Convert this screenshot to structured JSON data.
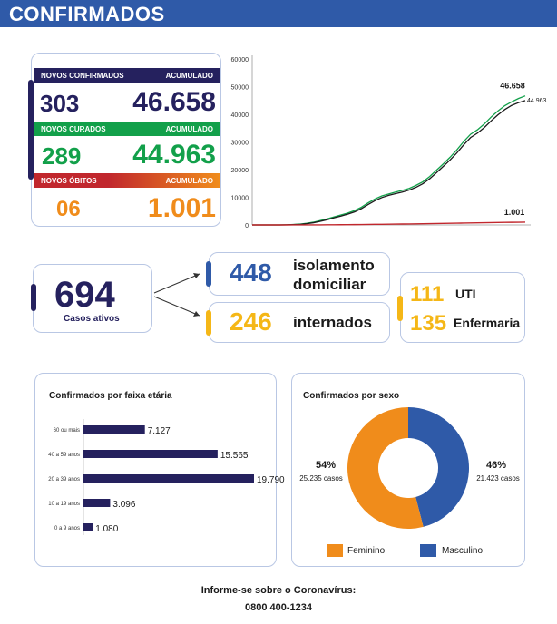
{
  "banner": {
    "title": "CONFIRMADOS"
  },
  "colors": {
    "navy": "#25215e",
    "blue": "#2f5aa8",
    "green": "#12a04a",
    "red": "#c1272d",
    "orange": "#f08c1b",
    "yellow": "#f5b717"
  },
  "summary": {
    "confirmados": {
      "label": "NOVOS CONFIRMADOS",
      "acc_label": "ACUMULADO",
      "novos": "303",
      "acumulado": "46.658"
    },
    "curados": {
      "label": "NOVOS CURADOS",
      "acc_label": "ACUMULADO",
      "novos": "289",
      "acumulado": "44.963"
    },
    "obitos": {
      "label": "NOVOS ÓBITOS",
      "acc_label": "ACUMULADO",
      "novos": "06",
      "acumulado": "1.001"
    }
  },
  "ativos": {
    "value": "694",
    "label": "Casos ativos"
  },
  "isolamento": {
    "value": "448",
    "line1": "isolamento",
    "line2": "domiciliar"
  },
  "internados": {
    "value": "246",
    "label": "internados"
  },
  "uti": {
    "value": "111",
    "label": "UTI"
  },
  "enfermaria": {
    "value": "135",
    "label": "Enfermaria"
  },
  "footer": {
    "line1": "Informe-se sobre o Coronavírus:",
    "line2": "0800 400-1234"
  },
  "chart_data": [
    {
      "type": "line",
      "title": "",
      "ylim": [
        0,
        60000
      ],
      "yticks": [
        "60000",
        "50000",
        "40000",
        "30000",
        "20000",
        "10000",
        "0"
      ],
      "yticks_values": [
        60000,
        50000,
        40000,
        30000,
        20000,
        10000,
        0
      ],
      "x": [
        0,
        1,
        2,
        3,
        4,
        5,
        6,
        7,
        8,
        9,
        10,
        11,
        12,
        13,
        14,
        15,
        16,
        17,
        18,
        19,
        20,
        21,
        22,
        23,
        24,
        25,
        26,
        27,
        28,
        29,
        30,
        31,
        32,
        33,
        34,
        35,
        36,
        37,
        38,
        39,
        40
      ],
      "series": [
        {
          "name": "Confirmados",
          "color": "#12a04a",
          "values": [
            0,
            0,
            0,
            0,
            0,
            50,
            150,
            300,
            600,
            1000,
            1600,
            2200,
            2900,
            3600,
            4300,
            5200,
            6400,
            8000,
            9400,
            10500,
            11200,
            11900,
            12500,
            13200,
            14300,
            15600,
            17500,
            19800,
            22100,
            24500,
            27200,
            30200,
            32800,
            34400,
            36500,
            39000,
            41200,
            43100,
            44500,
            45700,
            46658
          ]
        },
        {
          "name": "Curados",
          "color": "#1a1a1a",
          "values": [
            0,
            0,
            0,
            0,
            0,
            30,
            100,
            200,
            450,
            800,
            1300,
            1900,
            2600,
            3200,
            3900,
            4700,
            5900,
            7400,
            8800,
            9900,
            10700,
            11300,
            11900,
            12600,
            13600,
            14900,
            16700,
            18900,
            21200,
            23500,
            26100,
            29000,
            31600,
            33200,
            35200,
            37600,
            39800,
            41700,
            43200,
            44200,
            44963
          ]
        },
        {
          "name": "Óbitos",
          "color": "#c1272d",
          "values": [
            0,
            0,
            0,
            0,
            0,
            0,
            5,
            10,
            15,
            25,
            35,
            50,
            65,
            80,
            100,
            120,
            150,
            180,
            210,
            240,
            270,
            300,
            330,
            360,
            395,
            430,
            470,
            510,
            550,
            590,
            630,
            670,
            710,
            750,
            790,
            830,
            870,
            910,
            945,
            975,
            1001
          ]
        }
      ],
      "labels": [
        {
          "series": "Confirmados",
          "text": "46.658"
        },
        {
          "series": "Curados",
          "text": "44.963"
        },
        {
          "series": "Óbitos",
          "text": "1.001"
        }
      ]
    },
    {
      "type": "bar",
      "orientation": "horizontal",
      "title": "Confirmados por faixa etária",
      "categories": [
        "60 ou mais",
        "40 a 59 anos",
        "20 a 39 anos",
        "10 a 19 anos",
        "0 a 9 anos"
      ],
      "values": [
        7127,
        15565,
        19790,
        3096,
        1080
      ],
      "value_labels": [
        "7.127",
        "15.565",
        "19.790",
        "3.096",
        "1.080"
      ],
      "color": "#25215e",
      "xlim": [
        0,
        19790
      ]
    },
    {
      "type": "pie",
      "donut": true,
      "title": "Confirmados por sexo",
      "categories": [
        "Feminino",
        "Masculino"
      ],
      "values": [
        54,
        46
      ],
      "counts": [
        "25.235 casos",
        "21.423 casos"
      ],
      "pct_labels": [
        "54%",
        "46%"
      ],
      "colors": [
        "#f08c1b",
        "#2f5aa8"
      ]
    }
  ]
}
